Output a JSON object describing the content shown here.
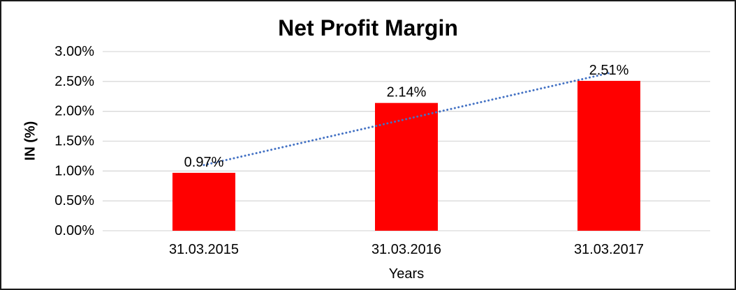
{
  "chart_data": {
    "type": "bar",
    "title": "Net Profit Margin",
    "xlabel": "Years",
    "ylabel": "IN (%)",
    "categories": [
      "31.03.2015",
      "31.03.2016",
      "31.03.2017"
    ],
    "values": [
      0.97,
      2.14,
      2.51
    ],
    "data_labels": [
      "0.97%",
      "2.14%",
      "2.51%"
    ],
    "ylim": [
      0,
      3
    ],
    "ytick_step": 0.5,
    "ytick_labels": [
      "0.00%",
      "0.50%",
      "1.00%",
      "1.50%",
      "2.00%",
      "2.50%",
      "3.00%"
    ],
    "grid": true,
    "legend": "none",
    "bar_color": "#FF0000",
    "gridline_color": "#D9D9D9",
    "label_color": "#000000",
    "trendline": {
      "type": "linear",
      "style": "dotted",
      "color": "#4472C4",
      "start_value": 1.1,
      "end_value": 2.64
    }
  }
}
